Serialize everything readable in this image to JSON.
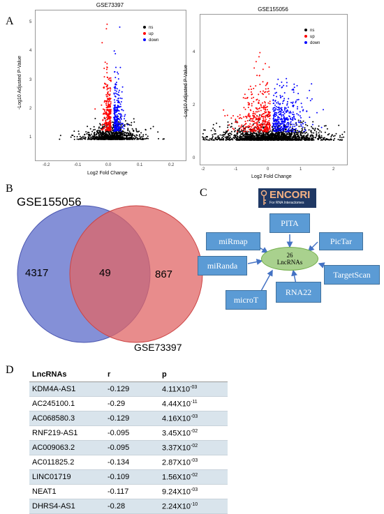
{
  "panel_a": {
    "letter": "A",
    "left_plot": {
      "title": "GSE73397",
      "xlabel": "Log2 Fold Change",
      "ylabel": "-Log10 Adjusted P-Value",
      "xticks": [
        "-0.2",
        "-0.1",
        "0.0",
        "0.1",
        "0.2"
      ],
      "yticks": [
        "1",
        "2",
        "3",
        "4",
        "5"
      ],
      "legend": [
        {
          "label": "ns",
          "color": "#000000"
        },
        {
          "label": "up",
          "color": "#ff0000"
        },
        {
          "label": "down",
          "color": "#0000ff"
        }
      ]
    },
    "right_plot": {
      "title": "GSE155056",
      "xlabel": "Log2 Fold Change",
      "ylabel": "-Log10 Adjusted P-Value",
      "xticks": [
        "-2",
        "-1",
        "0",
        "1",
        "2"
      ],
      "yticks": [
        "0",
        "2",
        "4"
      ],
      "legend": [
        {
          "label": "ns",
          "color": "#000000"
        },
        {
          "label": "up",
          "color": "#ff0000"
        },
        {
          "label": "down",
          "color": "#0000ff"
        }
      ]
    }
  },
  "panel_b": {
    "letter": "B",
    "set1_name": "GSE155056",
    "set2_name": "GSE73397",
    "set1_only": "4317",
    "overlap": "49",
    "set2_only": "867",
    "set1_color": "#5b6bc9",
    "set2_color": "#e06666"
  },
  "panel_c": {
    "letter": "C",
    "logo_title": "ENCORI",
    "logo_subtitle": "For RNA Interactomes",
    "center_count": "26",
    "center_label": "LncRNAs",
    "tools": [
      "PITA",
      "PicTar",
      "TargetScan",
      "RNA22",
      "microT",
      "miRanda",
      "miRmap"
    ]
  },
  "panel_d": {
    "letter": "D",
    "headers": [
      "LncRNAs",
      "r",
      "p"
    ],
    "rows": [
      {
        "name": "KDM4A-AS1",
        "r": "-0.129",
        "p_base": "4.11X10",
        "p_exp": "-03"
      },
      {
        "name": "AC245100.1",
        "r": "-0.29",
        "p_base": "4.44X10",
        "p_exp": "-11"
      },
      {
        "name": "AC068580.3",
        "r": "-0.129",
        "p_base": "4.16X10",
        "p_exp": "-03"
      },
      {
        "name": "RNF219-AS1",
        "r": "-0.095",
        "p_base": "3.45X10",
        "p_exp": "-02"
      },
      {
        "name": "AC009063.2",
        "r": "-0.095",
        "p_base": "3.37X10",
        "p_exp": "-02"
      },
      {
        "name": "AC011825.2",
        "r": "-0.134",
        "p_base": "2.87X10",
        "p_exp": "-03"
      },
      {
        "name": "LINC01719",
        "r": "-0.109",
        "p_base": "1.56X10",
        "p_exp": "-02"
      },
      {
        "name": "NEAT1",
        "r": "-0.117",
        "p_base": "9.24X10",
        "p_exp": "-03"
      },
      {
        "name": "DHRS4-AS1",
        "r": "-0.28",
        "p_base": "2.24X10",
        "p_exp": "-10"
      }
    ]
  }
}
